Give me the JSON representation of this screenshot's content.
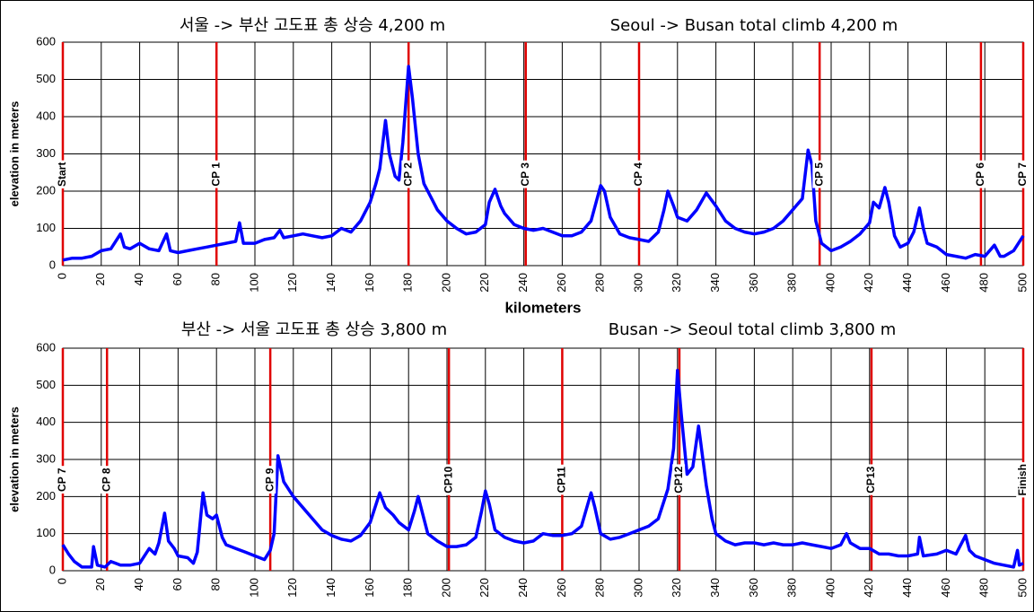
{
  "chart_data": [
    {
      "type": "line",
      "title_ko": "서울 -> 부산  고도표  총 상승 4,200 m",
      "title_en": "Seoul -> Busan  total climb 4,200 m",
      "ylabel": "elevation in meters",
      "xlabel": "kilometers",
      "xlim": [
        0,
        500
      ],
      "ylim": [
        0,
        600
      ],
      "xticks": [
        0,
        20,
        40,
        60,
        80,
        100,
        120,
        140,
        160,
        180,
        200,
        220,
        240,
        260,
        280,
        300,
        320,
        340,
        360,
        380,
        400,
        420,
        440,
        460,
        480,
        500
      ],
      "yticks": [
        0,
        100,
        200,
        300,
        400,
        500,
        600
      ],
      "grid": true,
      "x": [
        0,
        5,
        10,
        15,
        20,
        25,
        30,
        32,
        35,
        40,
        45,
        50,
        54,
        56,
        60,
        65,
        70,
        75,
        80,
        85,
        90,
        92,
        94,
        100,
        105,
        110,
        113,
        115,
        120,
        125,
        130,
        135,
        140,
        145,
        150,
        155,
        160,
        163,
        165,
        168,
        170,
        173,
        175,
        177,
        180,
        182,
        185,
        188,
        192,
        195,
        200,
        205,
        210,
        215,
        220,
        222,
        225,
        228,
        230,
        235,
        240,
        245,
        250,
        255,
        260,
        265,
        270,
        275,
        280,
        282,
        285,
        290,
        295,
        300,
        305,
        310,
        313,
        315,
        318,
        320,
        325,
        330,
        335,
        340,
        345,
        350,
        355,
        360,
        365,
        370,
        375,
        380,
        385,
        388,
        390,
        392,
        395,
        400,
        405,
        410,
        415,
        420,
        422,
        425,
        428,
        430,
        433,
        436,
        440,
        443,
        446,
        448,
        450,
        455,
        460,
        465,
        470,
        475,
        480,
        485,
        488,
        490,
        495,
        500
      ],
      "series": [
        {
          "color": "#0000ff",
          "values": [
            15,
            20,
            20,
            25,
            40,
            45,
            85,
            50,
            45,
            60,
            45,
            40,
            85,
            40,
            35,
            40,
            45,
            50,
            55,
            60,
            65,
            115,
            60,
            60,
            70,
            75,
            95,
            75,
            80,
            85,
            80,
            75,
            80,
            100,
            90,
            120,
            170,
            220,
            260,
            390,
            300,
            240,
            230,
            330,
            535,
            450,
            300,
            220,
            180,
            150,
            120,
            100,
            85,
            90,
            110,
            170,
            205,
            160,
            140,
            110,
            100,
            95,
            100,
            90,
            80,
            80,
            90,
            120,
            215,
            200,
            130,
            85,
            75,
            70,
            65,
            90,
            150,
            200,
            160,
            130,
            120,
            150,
            195,
            160,
            120,
            100,
            90,
            85,
            90,
            100,
            120,
            150,
            180,
            310,
            270,
            120,
            60,
            40,
            50,
            65,
            85,
            115,
            170,
            155,
            210,
            170,
            80,
            50,
            60,
            90,
            155,
            100,
            60,
            50,
            30,
            25,
            20,
            30,
            25,
            55,
            25,
            25,
            40,
            80
          ]
        }
      ],
      "checkpoints": {
        "color": "#e00000",
        "labels": [
          "Start",
          "CP 1",
          "CP 2",
          "CP 3",
          "CP 4",
          "CP 5",
          "CP 6",
          "CP 7"
        ],
        "x": [
          0,
          80,
          180,
          241,
          300,
          394,
          478,
          500
        ]
      }
    },
    {
      "type": "line",
      "title_ko": "부산  -> 서울  고도표  총  상승  3,800 m",
      "title_en": "Busan -> Seoul  total climb 3,800 m",
      "ylabel": "elevation in meters",
      "xlim": [
        0,
        500
      ],
      "ylim": [
        0,
        600
      ],
      "xticks": [
        0,
        20,
        40,
        60,
        80,
        100,
        120,
        140,
        160,
        180,
        200,
        220,
        240,
        260,
        280,
        300,
        320,
        340,
        360,
        380,
        400,
        420,
        440,
        460,
        480,
        500
      ],
      "yticks": [
        0,
        100,
        200,
        300,
        400,
        500,
        600
      ],
      "grid": true,
      "x": [
        0,
        3,
        6,
        10,
        15,
        16,
        18,
        22,
        25,
        30,
        35,
        40,
        45,
        48,
        50,
        53,
        55,
        58,
        60,
        65,
        68,
        70,
        73,
        75,
        78,
        80,
        83,
        85,
        90,
        95,
        100,
        105,
        108,
        110,
        112,
        115,
        120,
        125,
        130,
        135,
        140,
        145,
        150,
        155,
        160,
        165,
        168,
        172,
        175,
        180,
        183,
        185,
        188,
        190,
        195,
        200,
        205,
        210,
        215,
        218,
        220,
        222,
        225,
        230,
        235,
        240,
        245,
        250,
        255,
        260,
        265,
        270,
        275,
        277,
        280,
        285,
        290,
        295,
        300,
        305,
        310,
        315,
        318,
        320,
        322,
        325,
        328,
        331,
        333,
        335,
        338,
        340,
        345,
        350,
        355,
        360,
        365,
        370,
        375,
        380,
        385,
        390,
        395,
        400,
        405,
        408,
        410,
        415,
        420,
        425,
        430,
        435,
        440,
        445,
        446,
        448,
        455,
        460,
        465,
        470,
        472,
        475,
        480,
        485,
        490,
        495,
        497,
        498,
        500
      ],
      "series": [
        {
          "color": "#0000ff",
          "values": [
            70,
            45,
            25,
            10,
            10,
            65,
            15,
            10,
            25,
            15,
            15,
            20,
            60,
            45,
            75,
            155,
            80,
            60,
            40,
            35,
            20,
            50,
            210,
            150,
            140,
            150,
            90,
            70,
            60,
            50,
            40,
            30,
            55,
            100,
            310,
            240,
            200,
            170,
            140,
            110,
            95,
            85,
            80,
            95,
            130,
            210,
            170,
            150,
            130,
            110,
            160,
            200,
            140,
            100,
            80,
            65,
            65,
            70,
            90,
            160,
            215,
            180,
            110,
            90,
            80,
            75,
            80,
            100,
            95,
            95,
            100,
            120,
            210,
            170,
            100,
            85,
            90,
            100,
            110,
            120,
            140,
            220,
            330,
            540,
            420,
            260,
            280,
            390,
            310,
            230,
            140,
            100,
            80,
            70,
            75,
            75,
            70,
            75,
            70,
            70,
            75,
            70,
            65,
            60,
            70,
            100,
            75,
            60,
            60,
            45,
            45,
            40,
            40,
            45,
            90,
            40,
            45,
            55,
            45,
            95,
            55,
            40,
            30,
            20,
            15,
            10,
            55,
            15,
            20
          ]
        }
      ],
      "checkpoints": {
        "color": "#e00000",
        "labels": [
          "CP 7",
          "CP 8",
          "CP 9",
          "CP10",
          "CP11",
          "CP12",
          "CP13",
          "Finish"
        ],
        "x": [
          0,
          23,
          108,
          201,
          260,
          321,
          421,
          500
        ]
      }
    }
  ]
}
